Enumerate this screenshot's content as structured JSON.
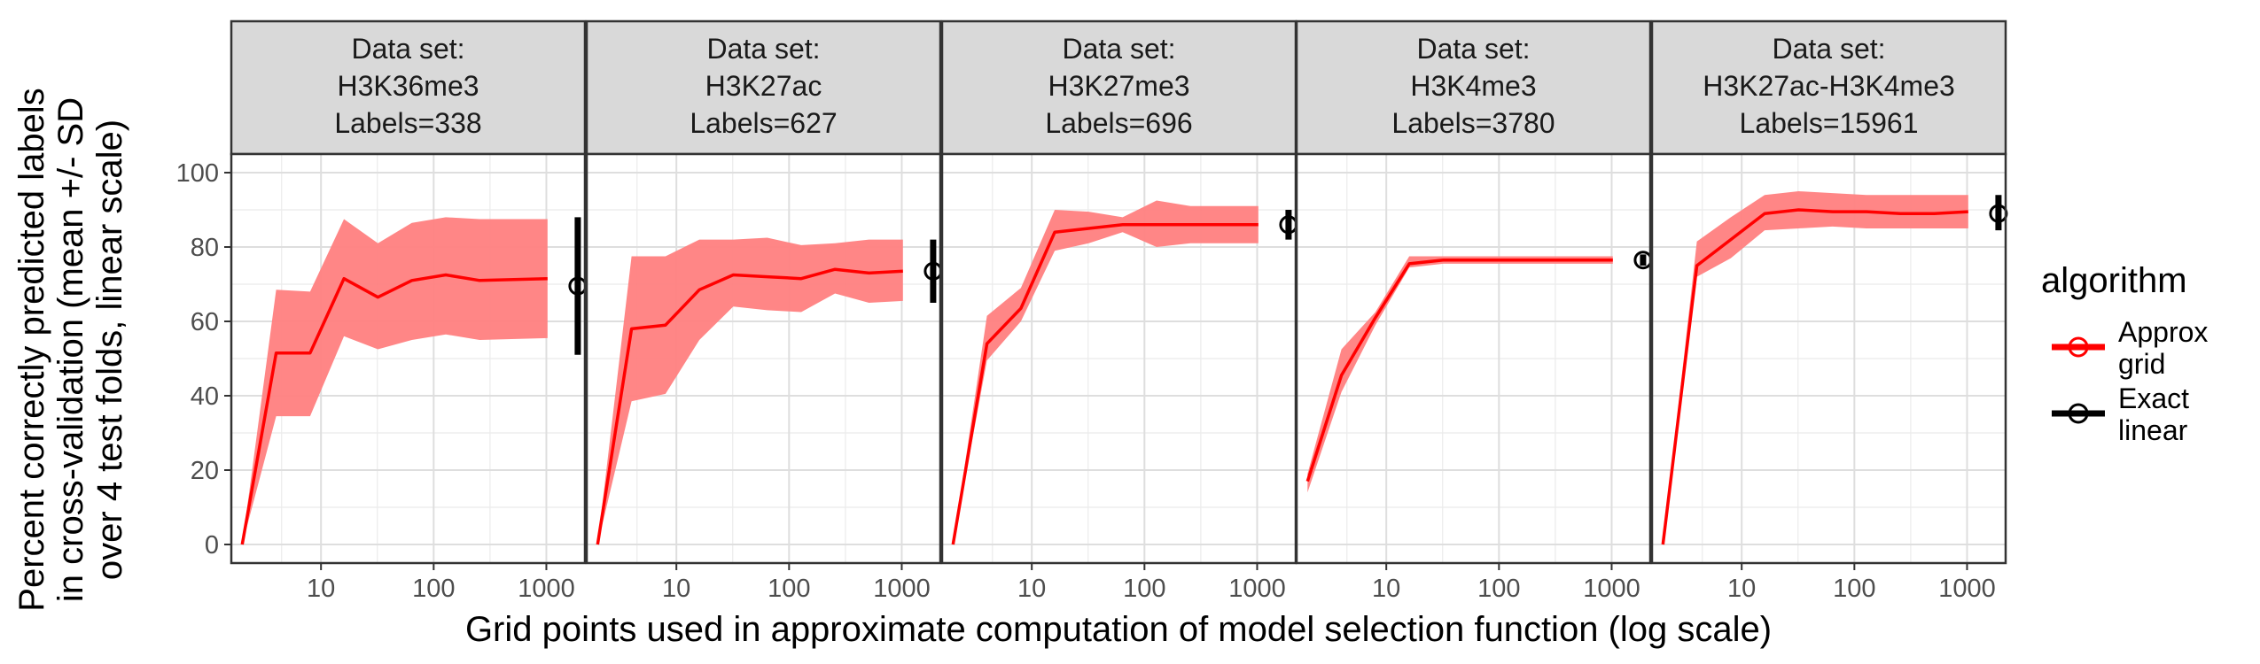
{
  "chart_data": {
    "type": "line",
    "xlabel": "Grid points used in approximate computation of model selection function (log scale)",
    "ylabel_lines": [
      "Percent correctly predicted labels",
      "in cross-validation (mean +/- SD",
      "over 4 test folds, linear scale)"
    ],
    "x_scale": "log",
    "xlim": [
      1.6,
      2200
    ],
    "x_ticks": [
      10,
      100,
      1000
    ],
    "x_tick_labels": [
      "10",
      "100",
      "1000"
    ],
    "ylim": [
      -5,
      105
    ],
    "y_ticks": [
      0,
      20,
      40,
      60,
      80,
      100
    ],
    "y_tick_labels": [
      "0",
      "20",
      "40",
      "60",
      "80",
      "100"
    ],
    "grid": true,
    "legend": {
      "title": "algorithm",
      "position": "right",
      "entries": [
        {
          "label_lines": [
            "Approx",
            "grid"
          ],
          "color": "#ff0000"
        },
        {
          "label_lines": [
            "Exact",
            "linear"
          ],
          "color": "#000000"
        }
      ]
    },
    "colors": {
      "approx_line": "#ff0000",
      "approx_band": "#ff7f7f",
      "exact": "#000000"
    },
    "panels": [
      {
        "strip": [
          "Data set:",
          "H3K36me3",
          "Labels=338"
        ],
        "approx": {
          "x": [
            2,
            4,
            8,
            16,
            32,
            64,
            128,
            256,
            1024
          ],
          "mean": [
            0,
            51.5,
            51.5,
            71.5,
            66.5,
            71,
            72.5,
            71,
            71.5
          ],
          "lo": [
            0,
            34.5,
            34.5,
            56,
            52.5,
            55,
            56.5,
            55,
            55.5
          ],
          "hi": [
            0,
            68.5,
            68,
            87.5,
            81,
            86.5,
            88,
            87.5,
            87.5
          ]
        },
        "exact": {
          "x": 1900,
          "mean": 69.5,
          "lo": 51,
          "hi": 88
        }
      },
      {
        "strip": [
          "Data set:",
          "H3K27ac",
          "Labels=627"
        ],
        "approx": {
          "x": [
            2,
            4,
            8,
            16,
            32,
            64,
            128,
            256,
            512,
            1024
          ],
          "mean": [
            0,
            58,
            59,
            68.5,
            72.5,
            72,
            71.5,
            74,
            73,
            73.5
          ],
          "lo": [
            0,
            38.5,
            40.5,
            55,
            64,
            63,
            62.5,
            67.5,
            65,
            65.5
          ],
          "hi": [
            0,
            77.5,
            77.5,
            82,
            82,
            82.5,
            80.5,
            81,
            82,
            82
          ]
        },
        "exact": {
          "x": 1900,
          "mean": 73.5,
          "lo": 65,
          "hi": 82
        }
      },
      {
        "strip": [
          "Data set:",
          "H3K27me3",
          "Labels=696"
        ],
        "approx": {
          "x": [
            2,
            4,
            8,
            16,
            32,
            64,
            128,
            256,
            1024
          ],
          "mean": [
            0,
            54,
            63.5,
            84,
            85,
            86,
            86,
            86,
            86
          ],
          "lo": [
            0,
            49.5,
            60,
            79,
            81,
            84,
            80,
            81,
            81
          ],
          "hi": [
            0,
            61.5,
            69,
            90,
            89.5,
            88,
            92.5,
            91,
            91
          ]
        },
        "exact": {
          "x": 1900,
          "mean": 86,
          "lo": 82,
          "hi": 90
        }
      },
      {
        "strip": [
          "Data set:",
          "H3K4me3",
          "Labels=3780"
        ],
        "approx": {
          "x": [
            2,
            4,
            8,
            16,
            32,
            64,
            128,
            256,
            1024
          ],
          "mean": [
            17,
            45.5,
            61,
            75.5,
            76.5,
            76.5,
            76.5,
            76.5,
            76.5
          ],
          "lo": [
            14,
            41,
            59,
            74.5,
            75.5,
            75.5,
            75.5,
            75.5,
            75.5
          ],
          "hi": [
            19,
            52.5,
            62.5,
            77.5,
            77.5,
            77.5,
            77.5,
            77.5,
            77.5
          ]
        },
        "exact": {
          "x": 1900,
          "mean": 76.5,
          "lo": 75,
          "hi": 78
        }
      },
      {
        "strip": [
          "Data set:",
          "H3K27ac-H3K4me3",
          "Labels=15961"
        ],
        "approx": {
          "x": [
            2,
            4,
            8,
            16,
            32,
            64,
            128,
            256,
            512,
            1024
          ],
          "mean": [
            0,
            75,
            82,
            89,
            90,
            89.5,
            89.5,
            89,
            89,
            89.5
          ],
          "lo": [
            0,
            72,
            77,
            84.5,
            85,
            85.5,
            85,
            85,
            85,
            85
          ],
          "hi": [
            0,
            81.5,
            88,
            94,
            95,
            94.5,
            94,
            94,
            94,
            94
          ]
        },
        "exact": {
          "x": 1900,
          "mean": 89,
          "lo": 84.5,
          "hi": 94
        }
      }
    ]
  }
}
